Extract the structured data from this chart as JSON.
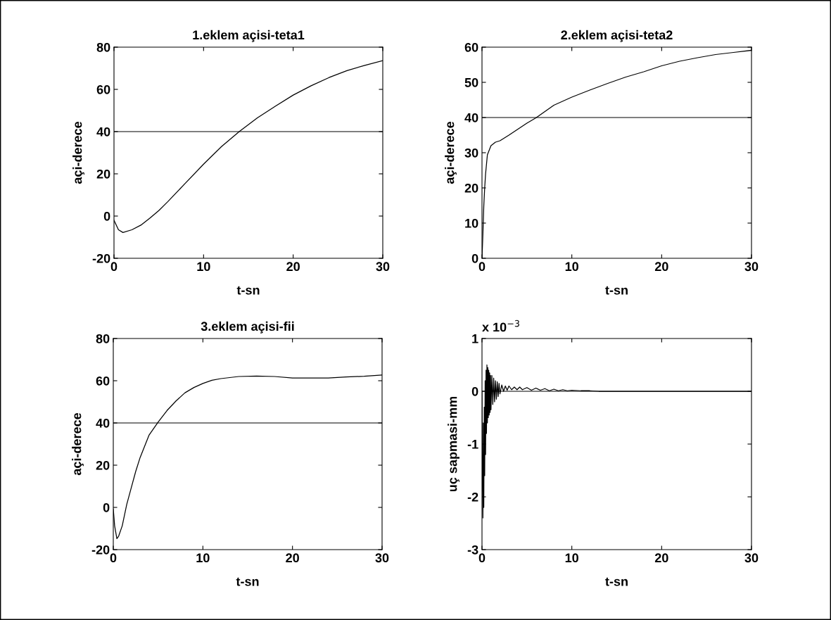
{
  "chart_data": [
    {
      "type": "line",
      "title": "1.eklem açisi-teta1",
      "xlabel": "t-sn",
      "ylabel": "açi-derece",
      "xlim": [
        0,
        30
      ],
      "xticks": [
        0,
        10,
        20,
        30
      ],
      "ylim": [
        -20,
        80
      ],
      "yticks": [
        -20,
        0,
        20,
        40,
        60,
        80
      ],
      "grid": false,
      "legend": false,
      "ref_lines": [
        {
          "axis": "y",
          "value": 40,
          "color": "#000000"
        }
      ],
      "series": [
        {
          "color": "#000000",
          "x": [
            0,
            0.5,
            1,
            2,
            3,
            4,
            5,
            6,
            8,
            10,
            12,
            14,
            16,
            18,
            20,
            22,
            24,
            26,
            28,
            30
          ],
          "values": [
            -2,
            -6.5,
            -7.8,
            -6.5,
            -4.3,
            -1,
            2.6,
            6.8,
            15.7,
            24.6,
            32.9,
            40.1,
            46.5,
            52,
            57.3,
            61.7,
            65.6,
            68.9,
            71.4,
            73.6
          ]
        }
      ]
    },
    {
      "type": "line",
      "title": "2.eklem açisi-teta2",
      "xlabel": "t-sn",
      "ylabel": "açi-derece",
      "xlim": [
        0,
        30
      ],
      "xticks": [
        0,
        10,
        20,
        30
      ],
      "ylim": [
        0,
        60
      ],
      "yticks": [
        0,
        10,
        20,
        30,
        40,
        50,
        60
      ],
      "grid": false,
      "legend": false,
      "ref_lines": [
        {
          "axis": "y",
          "value": 40,
          "color": "#000000"
        }
      ],
      "series": [
        {
          "color": "#000000",
          "x": [
            0,
            0.1,
            0.2,
            0.3,
            0.4,
            0.6,
            0.8,
            1,
            1.5,
            2,
            3,
            4,
            5,
            6,
            7,
            8,
            10,
            12,
            14,
            16,
            18,
            20,
            22,
            24,
            26,
            28,
            30
          ],
          "values": [
            0,
            6.8,
            14.8,
            20,
            24,
            29.4,
            30.7,
            32,
            33,
            33.4,
            35,
            36.7,
            38.4,
            39.9,
            41.7,
            43.5,
            45.8,
            47.8,
            49.7,
            51.5,
            53,
            54.7,
            56,
            57,
            57.9,
            58.5,
            59.1
          ]
        }
      ]
    },
    {
      "type": "line",
      "title": "3.eklem açisi-fii",
      "xlabel": "t-sn",
      "ylabel": "açi-derece",
      "xlim": [
        0,
        30
      ],
      "xticks": [
        0,
        10,
        20,
        30
      ],
      "ylim": [
        -20,
        80
      ],
      "yticks": [
        -20,
        0,
        20,
        40,
        60,
        80
      ],
      "grid": false,
      "legend": false,
      "ref_lines": [
        {
          "axis": "y",
          "value": 40,
          "color": "#000000"
        }
      ],
      "series": [
        {
          "color": "#000000",
          "x": [
            0,
            0.15,
            0.4,
            0.6,
            1,
            1.5,
            2,
            2.5,
            3,
            4,
            5,
            6,
            7,
            8,
            9,
            10,
            11,
            12,
            14,
            16,
            18,
            20,
            22,
            24,
            26,
            28,
            30
          ],
          "values": [
            -0.8,
            -8.7,
            -14.8,
            -13.6,
            -8.7,
            1.4,
            9.2,
            17,
            23.7,
            34.3,
            40.4,
            45.9,
            50.4,
            54.3,
            56.8,
            58.7,
            60.2,
            61,
            62,
            62.2,
            62,
            61.3,
            61.3,
            61.3,
            61.8,
            62.1,
            62.7
          ]
        }
      ]
    },
    {
      "type": "line",
      "xlabel": "t-sn",
      "ylabel": "uç sapmasi-mm",
      "xlim": [
        0,
        30
      ],
      "xticks": [
        0,
        10,
        20,
        30
      ],
      "ylim": [
        -3,
        1
      ],
      "yticks": [
        -3,
        -2,
        -1,
        0,
        1
      ],
      "grid": false,
      "legend": false,
      "annotations": [
        "x 10$^{−3}$"
      ],
      "ref_lines": [
        {
          "axis": "y",
          "value": 0,
          "color": "#000000"
        }
      ],
      "series": [
        {
          "color": "#000000",
          "x": [
            0,
            0.05,
            0.1,
            0.15,
            0.2,
            0.25,
            0.3,
            0.35,
            0.4,
            0.45,
            0.5,
            0.55,
            0.6,
            0.65,
            0.7,
            0.75,
            0.8,
            0.85,
            0.9,
            0.95,
            1.0,
            1.1,
            1.2,
            1.3,
            1.4,
            1.5,
            1.6,
            1.7,
            1.8,
            1.9,
            2.0,
            2.2,
            2.4,
            2.6,
            2.8,
            3.0,
            3.3,
            3.6,
            3.9,
            4.2,
            4.5,
            5,
            5.5,
            6,
            6.5,
            7,
            7.5,
            8,
            8.5,
            9,
            9.5,
            10,
            11,
            12,
            13,
            15,
            20,
            25,
            30
          ],
          "values": [
            0,
            -1.8,
            -2.4,
            -0.6,
            -2.2,
            -0.3,
            -1.6,
            0.2,
            -1.2,
            0.4,
            -0.8,
            0.5,
            -0.6,
            0.45,
            -0.5,
            0.4,
            -0.45,
            0.35,
            -0.4,
            0.3,
            -0.35,
            0.3,
            -0.25,
            0.25,
            -0.2,
            0.2,
            -0.15,
            0.18,
            -0.1,
            0.15,
            -0.05,
            0.12,
            0,
            0.1,
            0.02,
            0.1,
            0.03,
            0.08,
            0.03,
            0.08,
            0.03,
            0.07,
            0.02,
            0.06,
            0.02,
            0.05,
            0.01,
            0.04,
            0.01,
            0.03,
            0.01,
            0.02,
            0.01,
            0.01,
            0,
            0,
            0,
            0,
            0
          ]
        }
      ]
    }
  ]
}
